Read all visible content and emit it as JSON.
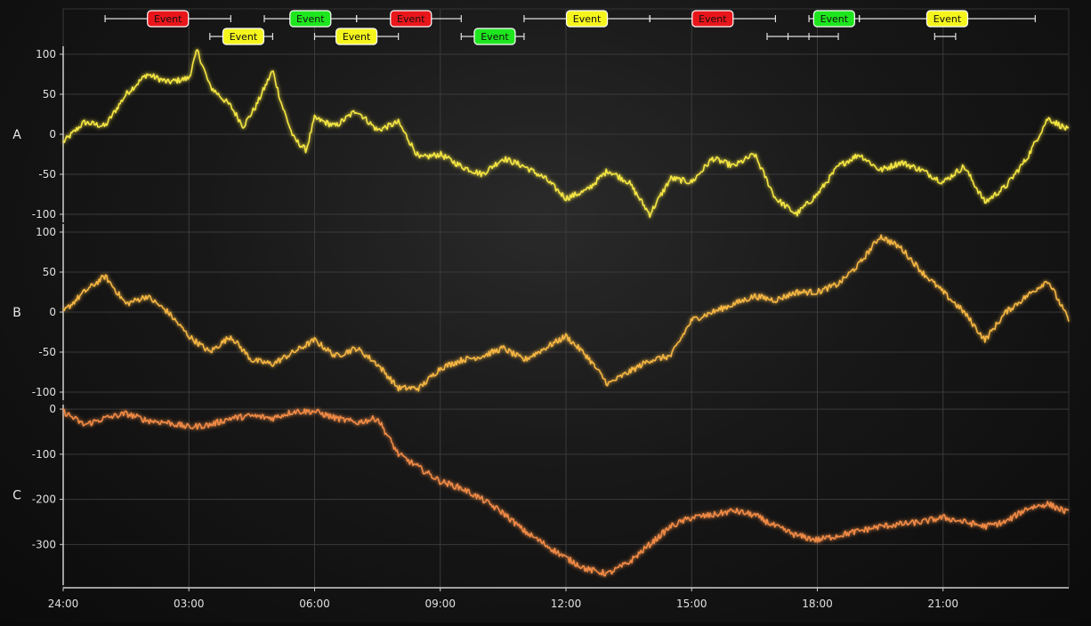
{
  "chart_data": {
    "type": "line",
    "x_tick_labels": [
      "24:00",
      "03:00",
      "06:00",
      "09:00",
      "12:00",
      "15:00",
      "18:00",
      "21:00"
    ],
    "x_range_hours": [
      0,
      24
    ],
    "grid": true,
    "colors": {
      "A": "#f5e642",
      "B": "#f5b642",
      "C": "#f08a45",
      "event_red": "#e8161b",
      "event_green": "#1ee61e",
      "event_yellow": "#f5f51e",
      "grid": "#3a3a3a",
      "axis": "#cfcfcf"
    },
    "series": [
      {
        "name": "A",
        "ylim": [
          -110,
          110
        ],
        "y_ticks": [
          100,
          50,
          0,
          -50,
          -100
        ],
        "x": [
          0,
          0.5,
          1,
          1.5,
          2,
          2.5,
          3,
          3.2,
          3.5,
          4,
          4.3,
          4.6,
          5,
          5.2,
          5.5,
          5.8,
          6,
          6.5,
          7,
          7.5,
          8,
          8.5,
          9,
          9.5,
          10,
          10.5,
          11,
          11.5,
          12,
          12.5,
          13,
          13.5,
          14,
          14.5,
          15,
          15.5,
          16,
          16.5,
          17,
          17.5,
          18,
          18.5,
          19,
          19.5,
          20,
          20.5,
          21,
          21.5,
          22,
          22.5,
          23,
          23.5,
          24
        ],
        "y": [
          -10,
          15,
          10,
          50,
          75,
          65,
          70,
          105,
          60,
          35,
          10,
          35,
          80,
          40,
          -5,
          -20,
          20,
          10,
          30,
          5,
          15,
          -30,
          -25,
          -40,
          -50,
          -30,
          -40,
          -55,
          -80,
          -70,
          -45,
          -60,
          -100,
          -55,
          -60,
          -30,
          -40,
          -25,
          -80,
          -100,
          -75,
          -40,
          -25,
          -45,
          -35,
          -45,
          -60,
          -40,
          -85,
          -65,
          -30,
          20,
          5
        ]
      },
      {
        "name": "B",
        "ylim": [
          -110,
          110
        ],
        "y_ticks": [
          100,
          50,
          0,
          -50,
          -100
        ],
        "x": [
          0,
          0.5,
          1,
          1.5,
          2,
          2.5,
          3,
          3.5,
          4,
          4.5,
          5,
          5.5,
          6,
          6.5,
          7,
          7.5,
          8,
          8.5,
          9,
          9.5,
          10,
          10.5,
          11,
          11.5,
          12,
          12.5,
          13,
          13.5,
          14,
          14.5,
          15,
          15.5,
          16,
          16.5,
          17,
          17.5,
          18,
          18.5,
          19,
          19.5,
          20,
          20.5,
          21,
          21.5,
          22,
          22.5,
          23,
          23.5,
          24
        ],
        "y": [
          0,
          25,
          45,
          10,
          20,
          0,
          -30,
          -50,
          -30,
          -60,
          -65,
          -50,
          -35,
          -55,
          -45,
          -65,
          -95,
          -95,
          -70,
          -60,
          -55,
          -45,
          -60,
          -45,
          -30,
          -55,
          -90,
          -75,
          -60,
          -55,
          -10,
          0,
          10,
          20,
          15,
          25,
          25,
          35,
          60,
          95,
          80,
          50,
          25,
          0,
          -35,
          0,
          20,
          40,
          -10
        ]
      },
      {
        "name": "C",
        "ylim": [
          -390,
          10
        ],
        "y_ticks": [
          0,
          -100,
          -200,
          -300
        ],
        "x": [
          0,
          0.5,
          1,
          1.5,
          2,
          2.5,
          3,
          3.5,
          4,
          4.5,
          5,
          5.5,
          6,
          6.5,
          7,
          7.5,
          8,
          8.5,
          9,
          9.5,
          10,
          10.5,
          11,
          11.5,
          12,
          12.5,
          13,
          13.5,
          14,
          14.5,
          15,
          15.5,
          16,
          16.5,
          17,
          17.5,
          18,
          18.5,
          19,
          19.5,
          20,
          20.5,
          21,
          21.5,
          22,
          22.5,
          23,
          23.5,
          24
        ],
        "y": [
          -5,
          -35,
          -20,
          -10,
          -25,
          -30,
          -40,
          -35,
          -20,
          -15,
          -20,
          -5,
          -5,
          -20,
          -30,
          -20,
          -100,
          -130,
          -160,
          -175,
          -200,
          -230,
          -270,
          -300,
          -330,
          -355,
          -365,
          -340,
          -300,
          -260,
          -240,
          -235,
          -225,
          -235,
          -260,
          -280,
          -290,
          -280,
          -270,
          -260,
          -255,
          -250,
          -240,
          -250,
          -260,
          -250,
          -220,
          -210,
          -230
        ]
      }
    ],
    "row_labels": [
      "A",
      "B",
      "C"
    ],
    "events": [
      {
        "label": "Event",
        "color": "red",
        "row": 0,
        "start": 1.0,
        "end": 4.0,
        "label_at": 2.5,
        "marks": []
      },
      {
        "label": "Event",
        "color": "green",
        "row": 0,
        "start": 4.8,
        "end": 7.0,
        "label_at": 5.9,
        "marks": []
      },
      {
        "label": "Event",
        "color": "red",
        "row": 0,
        "start": 7.0,
        "end": 9.5,
        "label_at": 8.3,
        "marks": [
          7.0
        ]
      },
      {
        "label": "Event",
        "color": "yellow",
        "row": 0,
        "start": 11.0,
        "end": 14.0,
        "label_at": 12.5,
        "marks": []
      },
      {
        "label": "Event",
        "color": "red",
        "row": 0,
        "start": 14.0,
        "end": 17.0,
        "label_at": 15.5,
        "marks": [
          14.0
        ]
      },
      {
        "label": "Event",
        "color": "green",
        "row": 0,
        "start": 17.8,
        "end": 19.0,
        "label_at": 18.4,
        "marks": []
      },
      {
        "label": "Event",
        "color": "yellow",
        "row": 0,
        "start": 19.0,
        "end": 23.2,
        "label_at": 21.1,
        "marks": [
          19.0
        ]
      },
      {
        "label": "Event",
        "color": "yellow",
        "row": 1,
        "start": 3.5,
        "end": 5.0,
        "label_at": 4.3,
        "marks": []
      },
      {
        "label": "Event",
        "color": "yellow",
        "row": 1,
        "start": 6.0,
        "end": 8.0,
        "label_at": 7.0,
        "marks": []
      },
      {
        "label": "Event",
        "color": "green",
        "row": 1,
        "start": 9.5,
        "end": 11.0,
        "label_at": 10.3,
        "marks": []
      },
      {
        "label": "Event",
        "color": "none",
        "row": 1,
        "start": 16.8,
        "end": 18.5,
        "label_at": null,
        "marks": [
          17.3,
          17.8
        ]
      },
      {
        "label": "Event",
        "color": "none",
        "row": 1,
        "start": 20.8,
        "end": 21.3,
        "label_at": null,
        "marks": []
      }
    ]
  }
}
